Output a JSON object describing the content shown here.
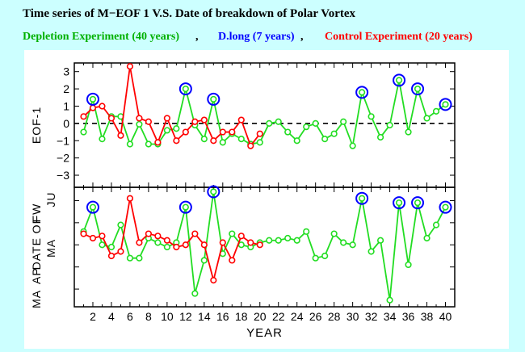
{
  "title": "Time series of M−EOF 1 V.S. Date of breakdown of Polar Vortex",
  "legend": [
    {
      "label": "Depletion Experiment (40 years)",
      "color": "#00b000"
    },
    {
      "label": "D.long (7 years)",
      "color": "#0000ff"
    },
    {
      "label": "Control Experiment (20 years)",
      "color": "#ff0000"
    }
  ],
  "separator": ",",
  "colors": {
    "background": "#ccffff",
    "plot_background": "#ffffff",
    "depletion": "#22dd22",
    "dlong": "#0000ff",
    "control": "#ff0000"
  },
  "chart_data": [
    {
      "type": "line",
      "ylabel": "EOF-1",
      "ylim": [
        -3.7,
        3.5
      ],
      "yticks": [
        -3,
        -2,
        -1,
        0,
        1,
        2,
        3
      ],
      "ytick_labels": [
        "−3",
        "−2",
        "−1",
        "0",
        "1",
        "2",
        "3"
      ],
      "reference_line": 0,
      "series": [
        {
          "key": "depletion",
          "x": [
            1,
            2,
            3,
            4,
            5,
            6,
            7,
            8,
            9,
            10,
            11,
            12,
            13,
            14,
            15,
            16,
            17,
            18,
            19,
            20,
            21,
            22,
            23,
            24,
            25,
            26,
            27,
            28,
            29,
            30,
            31,
            32,
            33,
            34,
            35,
            36,
            37,
            38,
            39,
            40
          ],
          "values": [
            -0.5,
            1.4,
            -0.9,
            0.4,
            0.4,
            -1.2,
            -0.05,
            -1.2,
            -1.2,
            -0.4,
            -0.3,
            2.0,
            -0.1,
            -0.9,
            1.4,
            -1.1,
            -0.6,
            -0.9,
            -1.2,
            -1.1,
            0,
            0.1,
            -0.5,
            -1.0,
            -0.2,
            0,
            -0.9,
            -0.6,
            0.1,
            -1.3,
            1.8,
            0.4,
            -0.8,
            -0.1,
            2.5,
            -0.5,
            2.0,
            0.3,
            0.7,
            1.1
          ]
        },
        {
          "key": "control",
          "x": [
            1,
            2,
            3,
            4,
            5,
            6,
            7,
            8,
            9,
            10,
            11,
            12,
            13,
            14,
            15,
            16,
            17,
            18,
            19,
            20
          ],
          "values": [
            0.4,
            0.9,
            1.0,
            0.3,
            -0.7,
            3.3,
            0.3,
            0.1,
            -1.1,
            0.3,
            -1.0,
            -0.5,
            0.1,
            0.2,
            -1.0,
            -0.5,
            -0.5,
            0.2,
            -1.3,
            -0.6
          ]
        },
        {
          "key": "dlong",
          "x": [
            2,
            12,
            15,
            31,
            35,
            37,
            40
          ],
          "values": [
            1.4,
            2.0,
            1.4,
            1.8,
            2.5,
            2.0,
            1.1
          ]
        }
      ]
    },
    {
      "type": "line",
      "ylabel": "DATE OF FW",
      "xlabel": "YEAR",
      "ylim": [
        0.2,
        5.6
      ],
      "yticks": [
        1,
        2,
        3,
        4,
        5
      ],
      "ytick_labels": [
        "MA",
        "AP",
        "MA",
        "FW",
        "JU"
      ],
      "ylabel_words": [
        "MA",
        "AP",
        "DATE",
        "MA",
        "OF",
        "FW",
        "JU"
      ],
      "xticks": [
        2,
        4,
        6,
        8,
        10,
        12,
        14,
        16,
        18,
        20,
        22,
        24,
        26,
        28,
        30,
        32,
        34,
        36,
        38,
        40
      ],
      "series": [
        {
          "key": "depletion",
          "x": [
            1,
            2,
            3,
            4,
            5,
            6,
            7,
            8,
            9,
            10,
            11,
            12,
            13,
            14,
            15,
            16,
            17,
            18,
            19,
            20,
            21,
            22,
            23,
            24,
            25,
            26,
            27,
            28,
            29,
            30,
            31,
            32,
            33,
            34,
            35,
            36,
            37,
            38,
            39,
            40
          ],
          "values": [
            3.6,
            4.7,
            3.0,
            2.9,
            3.9,
            2.4,
            2.4,
            3.3,
            3.1,
            2.9,
            3.1,
            4.7,
            0.8,
            2.3,
            5.4,
            2.6,
            3.5,
            3.0,
            2.9,
            3.1,
            3.2,
            3.2,
            3.3,
            3.2,
            3.6,
            2.4,
            2.5,
            3.5,
            3.1,
            3.0,
            5.1,
            2.7,
            3.2,
            0.5,
            4.9,
            2.1,
            4.9,
            3.3,
            3.9,
            4.7
          ]
        },
        {
          "key": "control",
          "x": [
            1,
            2,
            3,
            4,
            5,
            6,
            7,
            8,
            9,
            10,
            11,
            12,
            13,
            14,
            15,
            16,
            17,
            18,
            19,
            20
          ],
          "values": [
            3.5,
            3.3,
            3.4,
            2.5,
            2.7,
            5.1,
            3.1,
            3.5,
            3.4,
            3.2,
            2.9,
            3.0,
            3.5,
            3.0,
            1.4,
            3.1,
            2.3,
            3.4,
            3.1,
            3.0
          ]
        },
        {
          "key": "dlong",
          "x": [
            2,
            12,
            15,
            31,
            35,
            37,
            40
          ],
          "values": [
            4.7,
            4.7,
            5.4,
            5.1,
            4.9,
            4.9,
            4.7
          ]
        }
      ]
    }
  ]
}
